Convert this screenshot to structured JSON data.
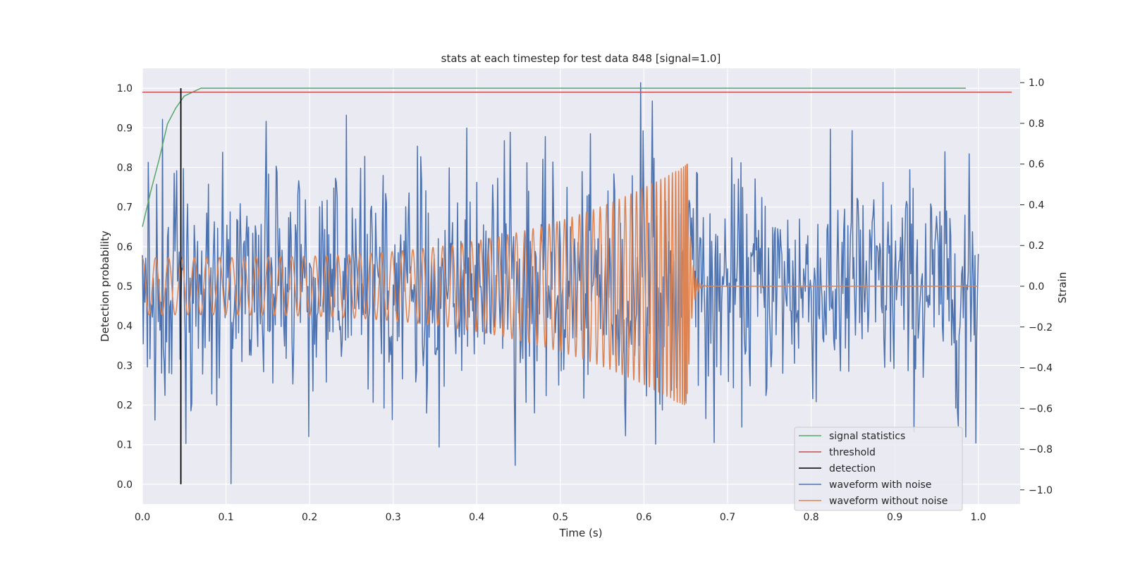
{
  "chart_data": {
    "type": "line",
    "title": "stats at each timestep for test data 848 [signal=1.0]",
    "xlabel": "Time (s)",
    "ylabel_left": "Detection probability",
    "ylabel_right": "Strain",
    "xlim": [
      0.0,
      1.05
    ],
    "ylim_left": [
      -0.05,
      1.05
    ],
    "ylim_right": [
      -1.07,
      1.07
    ],
    "xticks": [
      0.0,
      0.1,
      0.2,
      0.3,
      0.4,
      0.5,
      0.6,
      0.7,
      0.8,
      0.9,
      1.0
    ],
    "yticks_left": [
      0.0,
      0.1,
      0.2,
      0.3,
      0.4,
      0.5,
      0.6,
      0.7,
      0.8,
      0.9,
      1.0
    ],
    "yticks_right": [
      -1.0,
      -0.8,
      -0.6,
      -0.4,
      -0.2,
      0.0,
      0.2,
      0.4,
      0.6,
      0.8,
      1.0
    ],
    "grid": true,
    "legend_position": "lower right",
    "colors": {
      "signal": "#55a868",
      "threshold": "#c44e52",
      "detection": "#000000",
      "noisy": "#4c72b0",
      "clean": "#dd8452",
      "plot_bg": "#eaeaf2",
      "grid": "#ffffff"
    },
    "signal_statistics": {
      "name": "signal statistics",
      "x": [
        0.0,
        0.01,
        0.02,
        0.03,
        0.04,
        0.05,
        0.06,
        0.07,
        0.08,
        0.1,
        0.2,
        0.3,
        0.4,
        0.5,
        0.6,
        0.7,
        0.8,
        0.9,
        0.985
      ],
      "y": [
        0.65,
        0.74,
        0.82,
        0.91,
        0.95,
        0.98,
        0.99,
        1.0,
        1.0,
        1.0,
        1.0,
        1.0,
        1.0,
        1.0,
        1.0,
        1.0,
        1.0,
        1.0,
        1.0
      ]
    },
    "threshold": {
      "name": "threshold",
      "value": 0.99,
      "x_range": [
        0.0,
        1.04
      ]
    },
    "detection": {
      "name": "detection",
      "x": 0.046,
      "y_range": [
        0.0,
        1.0
      ]
    },
    "waveform_with_noise": {
      "name": "waveform with noise",
      "x_range": [
        0.0,
        1.0
      ],
      "amplitude_std": 0.27,
      "peaks": [
        {
          "x": 0.024,
          "y": 0.82
        },
        {
          "x": 0.106,
          "y": -0.97
        },
        {
          "x": 0.148,
          "y": 0.81
        },
        {
          "x": 0.244,
          "y": 0.84
        },
        {
          "x": 0.355,
          "y": -0.79
        },
        {
          "x": 0.446,
          "y": -0.88
        },
        {
          "x": 0.596,
          "y": 1.0
        },
        {
          "x": 0.61,
          "y": 0.91
        },
        {
          "x": 0.985,
          "y": -0.74
        },
        {
          "x": 0.997,
          "y": -0.77
        }
      ]
    },
    "waveform_without_noise": {
      "name": "waveform without noise",
      "x_range": [
        0.0,
        1.0
      ],
      "merger_time": 0.652,
      "amplitude_start": 0.14,
      "amplitude_peak": 0.6,
      "cycles_before_merger": 66,
      "peak_value": 0.64,
      "trough_value": -0.45
    }
  }
}
